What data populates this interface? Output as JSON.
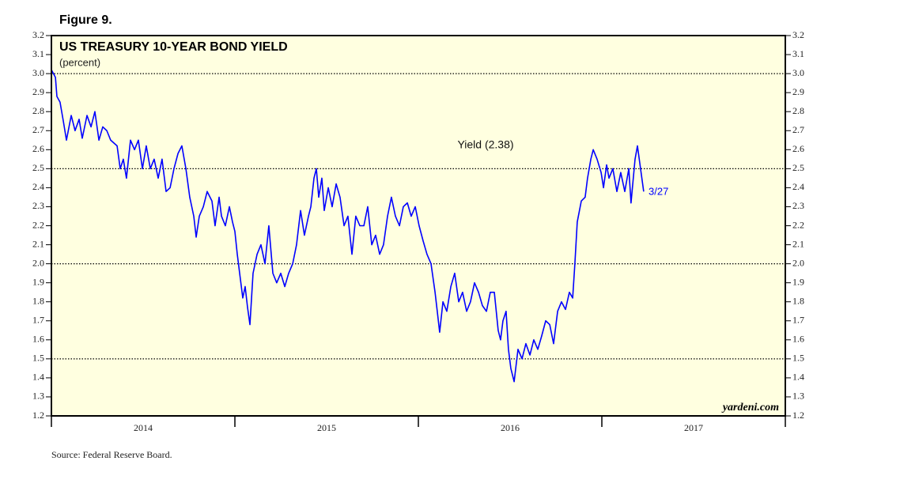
{
  "chart_data": {
    "type": "line",
    "figure_label": "Figure 9.",
    "title": "US TREASURY 10-YEAR BOND YIELD",
    "subtitle": "(percent)",
    "source": "Source: Federal Reserve Board.",
    "credit": "yardeni.com",
    "annotation": "3/27",
    "categories": [
      "2014",
      "2015",
      "2016",
      "2017"
    ],
    "xlim": [
      2014,
      2018
    ],
    "xticks": [
      2014,
      2015,
      2016,
      2017,
      2018
    ],
    "ylim": [
      1.2,
      3.2
    ],
    "yticks": [
      1.2,
      1.3,
      1.4,
      1.5,
      1.6,
      1.7,
      1.8,
      1.9,
      {
        "value": 2,
        "label": "2.0"
      },
      2.1,
      2.2,
      2.3,
      2.4,
      2.5,
      2.6,
      2.7,
      2.8,
      2.9,
      {
        "value": 3,
        "label": "3.0"
      },
      3.1,
      3.2
    ],
    "grid_lines": [
      1.5,
      2,
      2.5,
      3
    ],
    "x": [
      2014.0,
      2014.022,
      2014.03,
      2014.047,
      2014.065,
      2014.082,
      2014.108,
      2014.129,
      2014.151,
      2014.168,
      2014.194,
      2014.216,
      2014.237,
      2014.259,
      2014.28,
      2014.302,
      2014.323,
      2014.358,
      2014.375,
      2014.392,
      2014.409,
      2014.431,
      2014.453,
      2014.474,
      2014.496,
      2014.517,
      2014.539,
      2014.56,
      2014.582,
      2014.603,
      2014.625,
      2014.647,
      2014.668,
      2014.69,
      2014.711,
      2014.733,
      2014.754,
      2014.776,
      2014.789,
      2014.806,
      2014.828,
      2014.849,
      2014.875,
      2014.892,
      2014.914,
      2014.927,
      2014.948,
      2014.97,
      2014.987,
      2015.0,
      2015.013,
      2015.026,
      2015.043,
      2015.056,
      2015.069,
      2015.082,
      2015.099,
      2015.121,
      2015.142,
      2015.164,
      2015.185,
      2015.207,
      2015.228,
      2015.25,
      2015.272,
      2015.293,
      2015.315,
      2015.336,
      2015.358,
      2015.379,
      2015.401,
      2015.414,
      2015.431,
      2015.444,
      2015.457,
      2015.474,
      2015.487,
      2015.509,
      2015.53,
      2015.552,
      2015.573,
      2015.595,
      2015.616,
      2015.638,
      2015.659,
      2015.681,
      2015.703,
      2015.724,
      2015.746,
      2015.767,
      2015.789,
      2015.81,
      2015.832,
      2015.853,
      2015.875,
      2015.897,
      2015.918,
      2015.94,
      2015.961,
      2015.983,
      2016.004,
      2016.026,
      2016.047,
      2016.069,
      2016.091,
      2016.103,
      2016.116,
      2016.134,
      2016.155,
      2016.177,
      2016.198,
      2016.22,
      2016.241,
      2016.263,
      2016.284,
      2016.306,
      2016.328,
      2016.349,
      2016.371,
      2016.392,
      2016.414,
      2016.435,
      2016.448,
      2016.461,
      2016.478,
      2016.491,
      2016.504,
      2016.522,
      2016.543,
      2016.565,
      2016.586,
      2016.608,
      2016.629,
      2016.651,
      2016.672,
      2016.694,
      2016.716,
      2016.737,
      2016.759,
      2016.78,
      2016.802,
      2016.823,
      2016.841,
      2016.853,
      2016.866,
      2016.888,
      2016.909,
      2016.922,
      2016.94,
      2016.953,
      2016.974,
      2016.996,
      2017.009,
      2017.026,
      2017.039,
      2017.06,
      2017.082,
      2017.103,
      2017.125,
      2017.147,
      2017.159,
      2017.181,
      2017.194,
      2017.211,
      2017.228
    ],
    "series": [
      {
        "name": "Yield (2.38)",
        "color": "#0000ff",
        "values": [
          3.02,
          2.98,
          2.88,
          2.85,
          2.75,
          2.65,
          2.78,
          2.7,
          2.76,
          2.66,
          2.78,
          2.72,
          2.8,
          2.65,
          2.72,
          2.7,
          2.65,
          2.62,
          2.5,
          2.55,
          2.45,
          2.65,
          2.6,
          2.65,
          2.5,
          2.62,
          2.5,
          2.55,
          2.45,
          2.55,
          2.38,
          2.4,
          2.5,
          2.58,
          2.62,
          2.5,
          2.35,
          2.25,
          2.14,
          2.25,
          2.3,
          2.38,
          2.33,
          2.2,
          2.35,
          2.25,
          2.2,
          2.3,
          2.22,
          2.17,
          2.05,
          1.95,
          1.82,
          1.88,
          1.77,
          1.68,
          1.95,
          2.05,
          2.1,
          2.0,
          2.2,
          1.95,
          1.9,
          1.95,
          1.88,
          1.95,
          2.0,
          2.1,
          2.28,
          2.15,
          2.25,
          2.3,
          2.45,
          2.5,
          2.35,
          2.45,
          2.28,
          2.4,
          2.3,
          2.42,
          2.35,
          2.2,
          2.25,
          2.05,
          2.25,
          2.2,
          2.2,
          2.3,
          2.1,
          2.15,
          2.05,
          2.1,
          2.25,
          2.35,
          2.25,
          2.2,
          2.3,
          2.32,
          2.25,
          2.3,
          2.2,
          2.12,
          2.05,
          2.0,
          1.85,
          1.75,
          1.64,
          1.8,
          1.75,
          1.88,
          1.95,
          1.8,
          1.85,
          1.75,
          1.8,
          1.9,
          1.85,
          1.78,
          1.75,
          1.85,
          1.85,
          1.65,
          1.6,
          1.7,
          1.75,
          1.55,
          1.45,
          1.38,
          1.55,
          1.5,
          1.58,
          1.52,
          1.6,
          1.55,
          1.62,
          1.7,
          1.68,
          1.58,
          1.75,
          1.8,
          1.76,
          1.85,
          1.82,
          2.0,
          2.22,
          2.33,
          2.35,
          2.45,
          2.55,
          2.6,
          2.55,
          2.48,
          2.4,
          2.52,
          2.45,
          2.5,
          2.38,
          2.48,
          2.38,
          2.5,
          2.32,
          2.55,
          2.62,
          2.5,
          2.38
        ]
      }
    ],
    "background": "#ffffe0"
  }
}
